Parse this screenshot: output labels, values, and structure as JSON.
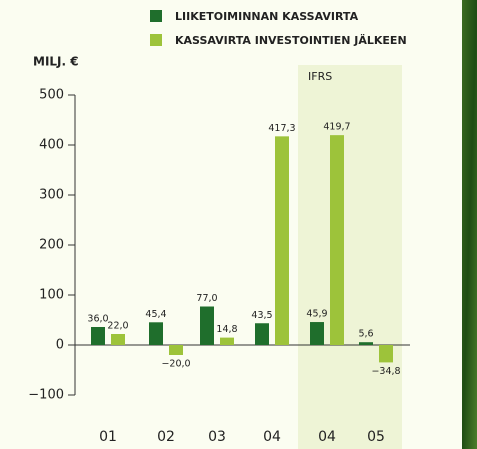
{
  "chart_data": {
    "type": "bar",
    "legend_title_unit": "MILJ. €",
    "annotation": "IFRS",
    "categories": [
      "01",
      "02",
      "03",
      "04",
      "04",
      "05"
    ],
    "series": [
      {
        "name": "LIIKETOIMINNAN KASSAVIRTA",
        "color": "#1f6e2c",
        "values": [
          36.0,
          45.4,
          77.0,
          43.5,
          45.9,
          5.6
        ],
        "value_labels": [
          "36,0",
          "45,4",
          "77,0",
          "43,5",
          "45,9",
          "5,6"
        ]
      },
      {
        "name": "KASSAVIRTA INVESTOINTIEN JÄLKEEN",
        "color": "#9dc33a",
        "values": [
          22.0,
          -20.0,
          14.8,
          417.3,
          419.7,
          -34.8
        ],
        "value_labels": [
          "22,0",
          "−20,0",
          "14,8",
          "417,3",
          "419,7",
          "−34,8"
        ]
      }
    ],
    "ylim": [
      -100,
      500
    ],
    "yticks": [
      {
        "value": -100,
        "label": "−100"
      },
      0,
      100,
      200,
      300,
      400,
      500
    ]
  }
}
